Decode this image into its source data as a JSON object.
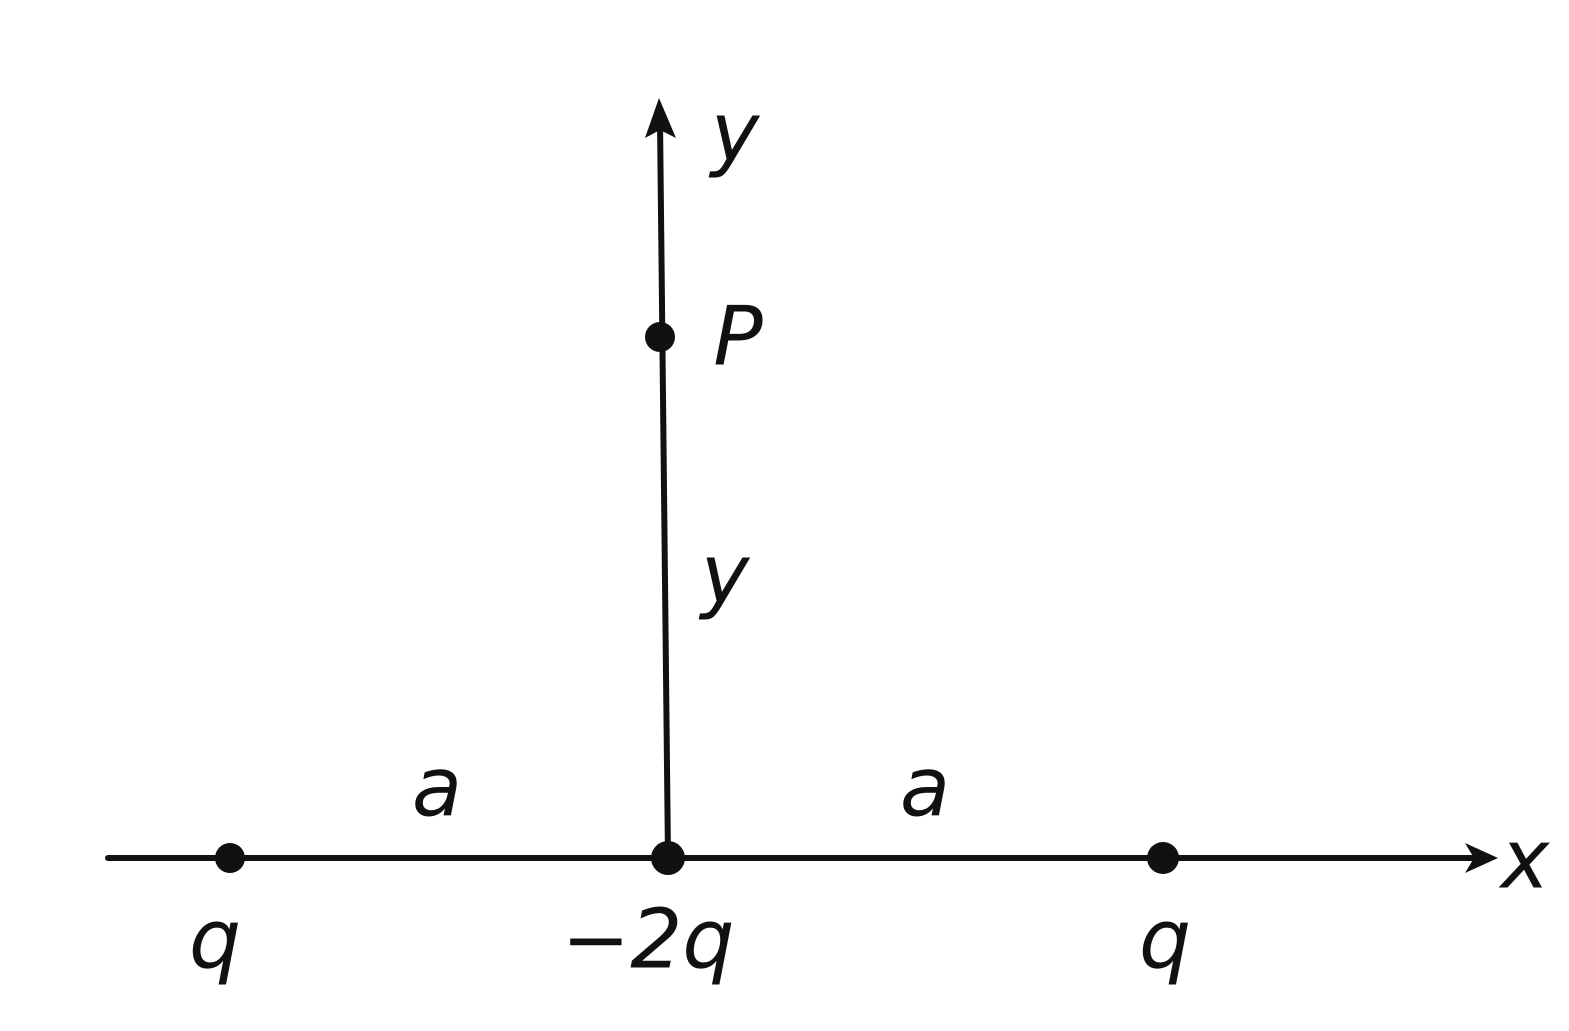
{
  "axes": {
    "x_label": "x",
    "y_label": "y"
  },
  "point": {
    "label": "P"
  },
  "distances": {
    "y": "y",
    "left": "a",
    "right": "a"
  },
  "charges": [
    {
      "label": "q"
    },
    {
      "label": "−2q"
    },
    {
      "label": "q"
    }
  ]
}
